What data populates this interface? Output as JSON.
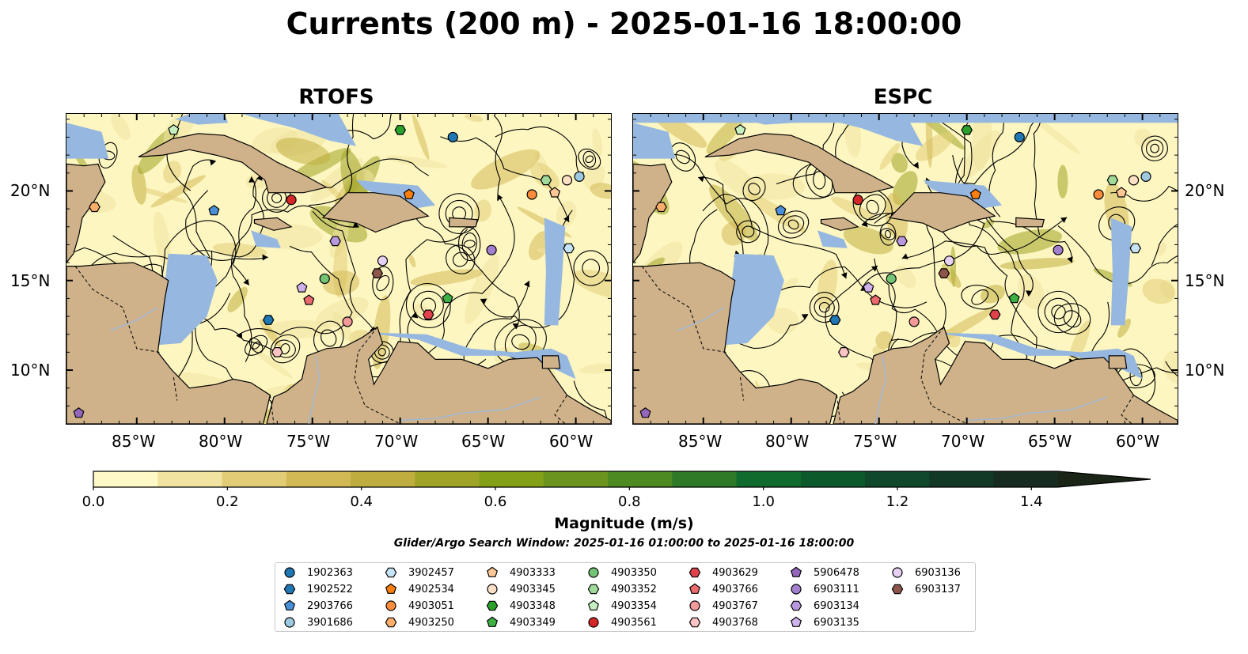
{
  "title": "Currents (200 m) - 2025-01-16 18:00:00",
  "panels": [
    {
      "id": "rtofs",
      "title": "RTOFS"
    },
    {
      "id": "espc",
      "title": "ESPC"
    }
  ],
  "lat_labels": [
    "20°N",
    "15°N",
    "10°N"
  ],
  "lon_labels": [
    "85°W",
    "80°W",
    "75°W",
    "70°W",
    "65°W",
    "60°W"
  ],
  "colorbar": {
    "label": "Magnitude (m/s)",
    "ticks": [
      "0.0",
      "0.2",
      "0.4",
      "0.6",
      "0.8",
      "1.0",
      "1.2",
      "1.4"
    ],
    "colors": [
      "#fef9c6",
      "#f1e3a0",
      "#e2cd76",
      "#d3b955",
      "#bfae3f",
      "#9fa427",
      "#84a017",
      "#6a941d",
      "#4d8a22",
      "#2e7a28",
      "#106c2e",
      "#0c5a2c",
      "#0f482a",
      "#123826",
      "#172c20",
      "#1a2417"
    ]
  },
  "subtitle": "Glider/Argo Search Window: 2025-01-16 01:00:00 to 2025-01-16 18:00:00",
  "legend": [
    {
      "label": "1902363",
      "color": "#1f77b4",
      "marker": "circle"
    },
    {
      "label": "1902522",
      "color": "#1f77b4",
      "marker": "hexagon"
    },
    {
      "label": "2903766",
      "color": "#4a90d9",
      "marker": "pentagon"
    },
    {
      "label": "3901686",
      "color": "#9ecae1",
      "marker": "circle"
    },
    {
      "label": "3902457",
      "color": "#c6e4f5",
      "marker": "hexagon"
    },
    {
      "label": "4902534",
      "color": "#ff7f0e",
      "marker": "pentagon"
    },
    {
      "label": "4903051",
      "color": "#fd8d3c",
      "marker": "circle"
    },
    {
      "label": "4903250",
      "color": "#fdae6b",
      "marker": "hexagon"
    },
    {
      "label": "4903333",
      "color": "#fdc896",
      "marker": "pentagon"
    },
    {
      "label": "4903345",
      "color": "#fde0c5",
      "marker": "circle"
    },
    {
      "label": "4903348",
      "color": "#2ca02c",
      "marker": "hexagon"
    },
    {
      "label": "4903349",
      "color": "#3cb043",
      "marker": "pentagon"
    },
    {
      "label": "4903350",
      "color": "#74c476",
      "marker": "circle"
    },
    {
      "label": "4903352",
      "color": "#a1d99b",
      "marker": "hexagon"
    },
    {
      "label": "4903354",
      "color": "#c7f0c2",
      "marker": "pentagon"
    },
    {
      "label": "4903561",
      "color": "#d62728",
      "marker": "circle"
    },
    {
      "label": "4903629",
      "color": "#e0424c",
      "marker": "hexagon"
    },
    {
      "label": "4903766",
      "color": "#ec6a6e",
      "marker": "pentagon"
    },
    {
      "label": "4903767",
      "color": "#f4999a",
      "marker": "circle"
    },
    {
      "label": "4903768",
      "color": "#fbc3c4",
      "marker": "hexagon"
    },
    {
      "label": "5906478",
      "color": "#9467bd",
      "marker": "pentagon"
    },
    {
      "label": "6903111",
      "color": "#a47fcf",
      "marker": "circle"
    },
    {
      "label": "6903134",
      "color": "#b897dd",
      "marker": "hexagon"
    },
    {
      "label": "6903135",
      "color": "#cfb1eb",
      "marker": "pentagon"
    },
    {
      "label": "6903136",
      "color": "#e6d1f5",
      "marker": "circle"
    },
    {
      "label": "6903137",
      "color": "#8c564b",
      "marker": "hexagon"
    }
  ],
  "floats": [
    {
      "lon": -67.0,
      "lat": 23.0,
      "color": "#1f77b4",
      "marker": "circle"
    },
    {
      "lon": -77.5,
      "lat": 12.8,
      "color": "#1f77b4",
      "marker": "hexagon"
    },
    {
      "lon": -80.6,
      "lat": 18.9,
      "color": "#4a90d9",
      "marker": "pentagon"
    },
    {
      "lon": -59.8,
      "lat": 20.8,
      "color": "#9ecae1",
      "marker": "circle"
    },
    {
      "lon": -60.4,
      "lat": 16.8,
      "color": "#c6e4f5",
      "marker": "hexagon"
    },
    {
      "lon": -69.5,
      "lat": 19.8,
      "color": "#ff7f0e",
      "marker": "pentagon"
    },
    {
      "lon": -62.5,
      "lat": 19.8,
      "color": "#fd8d3c",
      "marker": "circle"
    },
    {
      "lon": -87.4,
      "lat": 19.1,
      "color": "#fdae6b",
      "marker": "hexagon"
    },
    {
      "lon": -61.2,
      "lat": 19.9,
      "color": "#fdc896",
      "marker": "pentagon"
    },
    {
      "lon": -60.5,
      "lat": 20.6,
      "color": "#fde0c5",
      "marker": "circle"
    },
    {
      "lon": -70.0,
      "lat": 23.4,
      "color": "#2ca02c",
      "marker": "hexagon"
    },
    {
      "lon": -67.3,
      "lat": 14.0,
      "color": "#3cb043",
      "marker": "pentagon"
    },
    {
      "lon": -74.3,
      "lat": 15.1,
      "color": "#74c476",
      "marker": "circle"
    },
    {
      "lon": -61.7,
      "lat": 20.6,
      "color": "#a1d99b",
      "marker": "hexagon"
    },
    {
      "lon": -82.9,
      "lat": 23.4,
      "color": "#c7f0c2",
      "marker": "pentagon"
    },
    {
      "lon": -76.2,
      "lat": 19.5,
      "color": "#d62728",
      "marker": "circle"
    },
    {
      "lon": -68.4,
      "lat": 13.1,
      "color": "#e0424c",
      "marker": "hexagon"
    },
    {
      "lon": -75.2,
      "lat": 13.9,
      "color": "#ec6a6e",
      "marker": "pentagon"
    },
    {
      "lon": -73.0,
      "lat": 12.7,
      "color": "#f4999a",
      "marker": "circle"
    },
    {
      "lon": -77.0,
      "lat": 11.0,
      "color": "#fbc3c4",
      "marker": "hexagon"
    },
    {
      "lon": -88.3,
      "lat": 7.6,
      "color": "#9467bd",
      "marker": "pentagon"
    },
    {
      "lon": -64.8,
      "lat": 16.7,
      "color": "#a47fcf",
      "marker": "circle"
    },
    {
      "lon": -73.7,
      "lat": 17.2,
      "color": "#b897dd",
      "marker": "hexagon"
    },
    {
      "lon": -75.6,
      "lat": 14.6,
      "color": "#cfb1eb",
      "marker": "pentagon"
    },
    {
      "lon": -71.0,
      "lat": 16.1,
      "color": "#e6d1f5",
      "marker": "circle"
    },
    {
      "lon": -71.3,
      "lat": 15.4,
      "color": "#8c564b",
      "marker": "hexagon"
    }
  ],
  "colors": {
    "land": "#cfb28a",
    "water": "#96b8e0",
    "border": "#111111"
  }
}
